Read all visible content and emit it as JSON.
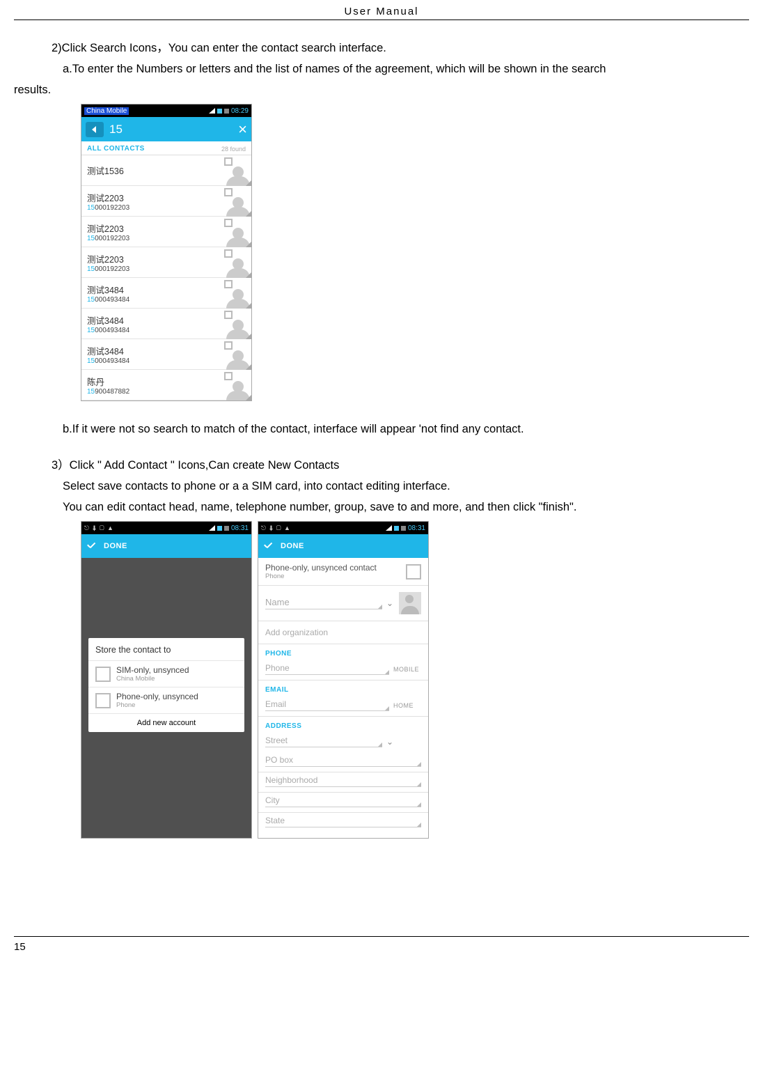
{
  "page": {
    "header": "User  Manual",
    "number": "15"
  },
  "text": {
    "line1": "2)Click Search Icons，You can enter the contact search interface.",
    "line2": "a.To enter the Numbers or letters and the list of names of the agreement, which will be shown in the search",
    "line2b": "results.",
    "line3": "b.If it were not so search to match of the contact, interface will appear 'not find any contact.",
    "line4": "3）Click \" Add  Contact \" Icons,Can create New Contacts",
    "line5": "Select save contacts to phone or a a SIM card, into contact editing interface.",
    "line6": "You can edit contact head, name, telephone number, group, save to and more, and then click \"finish\"."
  },
  "status": {
    "carrier": "China Mobile",
    "time1": "08:29",
    "time2": "08:31"
  },
  "search": {
    "query": "15",
    "tabs_label": "ALL CONTACTS",
    "found_count": "28 found",
    "rows": [
      {
        "name": "测试1536",
        "num_hl": "",
        "num_rest": ""
      },
      {
        "name": "测试2203",
        "num_hl": "15",
        "num_rest": "000192203"
      },
      {
        "name": "测试2203",
        "num_hl": "15",
        "num_rest": "000192203"
      },
      {
        "name": "测试2203",
        "num_hl": "15",
        "num_rest": "000192203"
      },
      {
        "name": "测试3484",
        "num_hl": "15",
        "num_rest": "000493484"
      },
      {
        "name": "测试3484",
        "num_hl": "15",
        "num_rest": "000493484"
      },
      {
        "name": "测试3484",
        "num_hl": "15",
        "num_rest": "000493484"
      },
      {
        "name": "陈丹",
        "num_hl": "15",
        "num_rest": "900487882"
      }
    ]
  },
  "done": {
    "label": "DONE"
  },
  "store": {
    "title": "Store the contact to",
    "opt1_main": "SIM-only, unsynced",
    "opt1_sub": "China Mobile",
    "opt2_main": "Phone-only, unsynced",
    "opt2_sub": "Phone",
    "add": "Add new account"
  },
  "edit": {
    "header_main": "Phone-only, unsynced contact",
    "header_sub": "Phone",
    "name_ph": "Name",
    "add_org": "Add organization",
    "phone_section": "PHONE",
    "phone_ph": "Phone",
    "phone_type": "MOBILE",
    "email_section": "EMAIL",
    "email_ph": "Email",
    "email_type": "HOME",
    "address_section": "ADDRESS",
    "street_ph": "Street",
    "pobox_ph": "PO box",
    "neighborhood_ph": "Neighborhood",
    "city_ph": "City",
    "state_ph": "State"
  },
  "colors": {
    "accent": "#1fb6e8",
    "highlight_blue": "#1a4fd6"
  }
}
